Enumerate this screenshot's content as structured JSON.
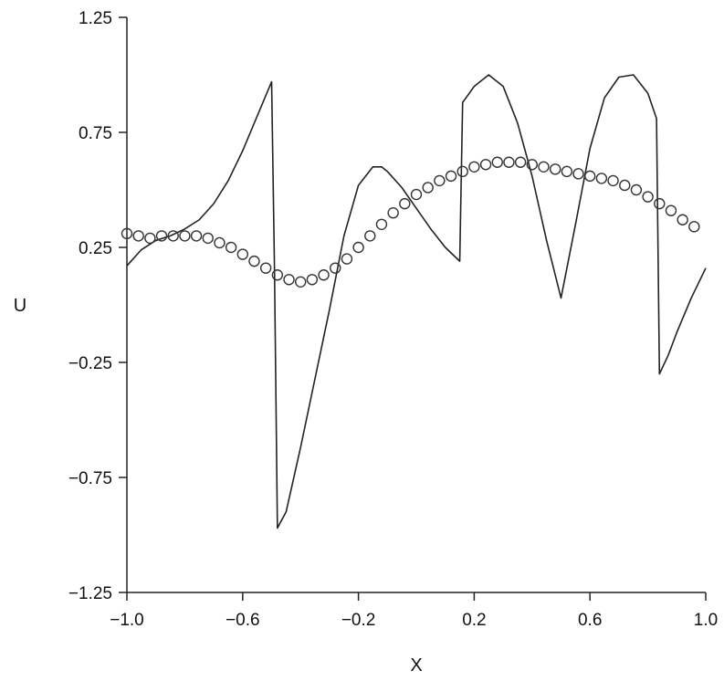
{
  "chart_data": {
    "type": "line",
    "title": "",
    "xlabel": "X",
    "ylabel": "U",
    "xlim": [
      -1.0,
      1.0
    ],
    "ylim": [
      -1.25,
      1.25
    ],
    "xticks": [
      -1.0,
      -0.6,
      -0.2,
      0.2,
      0.6,
      1.0
    ],
    "xtick_labels": [
      "−1.0",
      "−0.6",
      "−0.2",
      "0.2",
      "0.6",
      "1.0"
    ],
    "yticks": [
      1.25,
      0.75,
      0.25,
      -0.25,
      -0.75,
      -1.25
    ],
    "ytick_labels": [
      "1.25",
      "0.75",
      "0.25",
      "−0.25",
      "−0.75",
      "−1.25"
    ],
    "grid": false,
    "legend": "none",
    "series": [
      {
        "style": "line",
        "color": "#222222",
        "x": [
          -1.0,
          -0.95,
          -0.9,
          -0.85,
          -0.8,
          -0.75,
          -0.7,
          -0.65,
          -0.6,
          -0.55,
          -0.5,
          -0.49,
          -0.48,
          -0.45,
          -0.4,
          -0.35,
          -0.3,
          -0.25,
          -0.2,
          -0.15,
          -0.12,
          -0.1,
          -0.05,
          0.0,
          0.05,
          0.1,
          0.15,
          0.16,
          0.2,
          0.25,
          0.3,
          0.35,
          0.4,
          0.45,
          0.5,
          0.55,
          0.6,
          0.65,
          0.7,
          0.75,
          0.8,
          0.83,
          0.84,
          0.87,
          0.9,
          0.95,
          1.0
        ],
        "y": [
          0.17,
          0.24,
          0.28,
          0.3,
          0.33,
          0.37,
          0.44,
          0.54,
          0.67,
          0.82,
          0.97,
          0.15,
          -0.97,
          -0.9,
          -0.62,
          -0.32,
          -0.02,
          0.3,
          0.52,
          0.6,
          0.6,
          0.58,
          0.51,
          0.42,
          0.33,
          0.25,
          0.19,
          0.88,
          0.95,
          1.0,
          0.95,
          0.79,
          0.56,
          0.28,
          0.03,
          0.35,
          0.68,
          0.9,
          0.99,
          1.0,
          0.92,
          0.81,
          -0.3,
          -0.22,
          -0.12,
          0.03,
          0.16
        ]
      },
      {
        "style": "markers",
        "marker": "circle-open",
        "color": "#333333",
        "x": [
          -1.0,
          -0.96,
          -0.92,
          -0.88,
          -0.84,
          -0.8,
          -0.76,
          -0.72,
          -0.68,
          -0.64,
          -0.6,
          -0.56,
          -0.52,
          -0.48,
          -0.44,
          -0.4,
          -0.36,
          -0.32,
          -0.28,
          -0.24,
          -0.2,
          -0.16,
          -0.12,
          -0.08,
          -0.04,
          0.0,
          0.04,
          0.08,
          0.12,
          0.16,
          0.2,
          0.24,
          0.28,
          0.32,
          0.36,
          0.4,
          0.44,
          0.48,
          0.52,
          0.56,
          0.6,
          0.64,
          0.68,
          0.72,
          0.76,
          0.8,
          0.84,
          0.88,
          0.92,
          0.96
        ],
        "y": [
          0.31,
          0.3,
          0.29,
          0.3,
          0.3,
          0.3,
          0.3,
          0.29,
          0.27,
          0.25,
          0.22,
          0.19,
          0.16,
          0.13,
          0.11,
          0.1,
          0.11,
          0.13,
          0.16,
          0.2,
          0.25,
          0.3,
          0.35,
          0.4,
          0.44,
          0.48,
          0.51,
          0.54,
          0.56,
          0.58,
          0.6,
          0.61,
          0.62,
          0.62,
          0.62,
          0.61,
          0.6,
          0.59,
          0.58,
          0.57,
          0.56,
          0.55,
          0.54,
          0.52,
          0.5,
          0.47,
          0.44,
          0.41,
          0.37,
          0.34
        ]
      }
    ]
  }
}
